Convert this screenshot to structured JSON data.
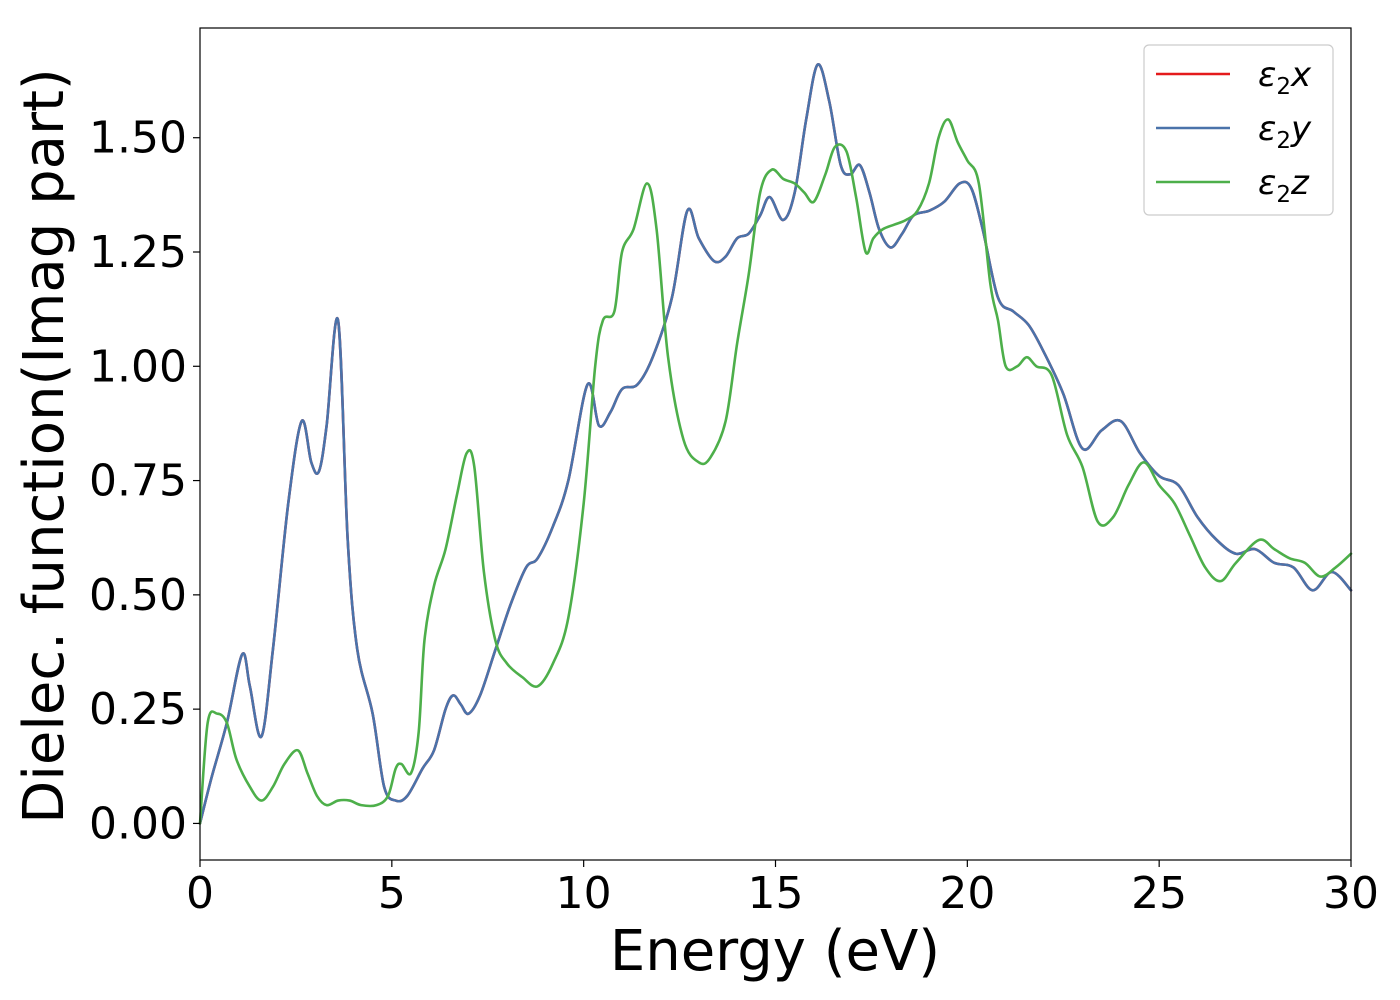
{
  "chart_data": {
    "type": "line",
    "title": "",
    "xlabel": "Energy (eV)",
    "ylabel": "Dielec. function(Imag part)",
    "xlim": [
      0,
      30
    ],
    "ylim": [
      -0.08,
      1.74
    ],
    "xticks": [
      0,
      5,
      10,
      15,
      20,
      25,
      30
    ],
    "xtick_labels": [
      "0",
      "5",
      "10",
      "15",
      "20",
      "25",
      "30"
    ],
    "yticks": [
      0.0,
      0.25,
      0.5,
      0.75,
      1.0,
      1.25,
      1.5
    ],
    "ytick_labels": [
      "0.00",
      "0.25",
      "0.50",
      "0.75",
      "1.00",
      "1.25",
      "1.50"
    ],
    "grid": false,
    "legend_position": "top-right",
    "series": [
      {
        "name": "ε2x",
        "legend_base": "ε",
        "legend_sub": "2",
        "legend_suffix": "x",
        "color": "#e41a1c",
        "x": [
          0,
          0.3,
          0.7,
          1.1,
          1.3,
          1.6,
          1.9,
          2.3,
          2.65,
          2.9,
          3.1,
          3.3,
          3.6,
          3.85,
          4.1,
          4.5,
          4.8,
          5.1,
          5.4,
          5.8,
          6.1,
          6.4,
          6.6,
          6.8,
          7.0,
          7.3,
          7.7,
          8.1,
          8.5,
          8.8,
          9.2,
          9.6,
          10.1,
          10.4,
          10.7,
          11.0,
          11.4,
          11.8,
          12.3,
          12.7,
          13.0,
          13.4,
          13.7,
          14.0,
          14.3,
          14.6,
          14.85,
          15.2,
          15.5,
          15.8,
          16.1,
          16.4,
          16.7,
          16.95,
          17.2,
          17.45,
          17.7,
          18.0,
          18.3,
          18.6,
          19.0,
          19.4,
          19.8,
          20.1,
          20.4,
          20.8,
          21.2,
          21.6,
          22.0,
          22.5,
          23.0,
          23.5,
          24.0,
          24.5,
          25.0,
          25.5,
          26.0,
          26.5,
          27.0,
          27.5,
          28.0,
          28.5,
          29.0,
          29.5,
          30.0
        ],
        "y": [
          0.0,
          0.1,
          0.22,
          0.37,
          0.3,
          0.19,
          0.38,
          0.7,
          0.88,
          0.79,
          0.77,
          0.87,
          1.1,
          0.62,
          0.38,
          0.24,
          0.08,
          0.05,
          0.06,
          0.12,
          0.16,
          0.25,
          0.28,
          0.26,
          0.24,
          0.28,
          0.38,
          0.48,
          0.56,
          0.58,
          0.65,
          0.75,
          0.96,
          0.87,
          0.9,
          0.95,
          0.96,
          1.02,
          1.15,
          1.34,
          1.28,
          1.23,
          1.24,
          1.28,
          1.29,
          1.33,
          1.37,
          1.32,
          1.38,
          1.54,
          1.66,
          1.58,
          1.44,
          1.42,
          1.44,
          1.38,
          1.3,
          1.26,
          1.29,
          1.33,
          1.34,
          1.36,
          1.4,
          1.39,
          1.3,
          1.15,
          1.12,
          1.09,
          1.03,
          0.94,
          0.82,
          0.86,
          0.88,
          0.81,
          0.76,
          0.74,
          0.67,
          0.62,
          0.59,
          0.6,
          0.57,
          0.56,
          0.51,
          0.55,
          0.51
        ]
      },
      {
        "name": "ε2y",
        "legend_base": "ε",
        "legend_sub": "2",
        "legend_suffix": "y",
        "color": "#4a73aa",
        "x": [
          0,
          0.3,
          0.7,
          1.1,
          1.3,
          1.6,
          1.9,
          2.3,
          2.65,
          2.9,
          3.1,
          3.3,
          3.6,
          3.85,
          4.1,
          4.5,
          4.8,
          5.1,
          5.4,
          5.8,
          6.1,
          6.4,
          6.6,
          6.8,
          7.0,
          7.3,
          7.7,
          8.1,
          8.5,
          8.8,
          9.2,
          9.6,
          10.1,
          10.4,
          10.7,
          11.0,
          11.4,
          11.8,
          12.3,
          12.7,
          13.0,
          13.4,
          13.7,
          14.0,
          14.3,
          14.6,
          14.85,
          15.2,
          15.5,
          15.8,
          16.1,
          16.4,
          16.7,
          16.95,
          17.2,
          17.45,
          17.7,
          18.0,
          18.3,
          18.6,
          19.0,
          19.4,
          19.8,
          20.1,
          20.4,
          20.8,
          21.2,
          21.6,
          22.0,
          22.5,
          23.0,
          23.5,
          24.0,
          24.5,
          25.0,
          25.5,
          26.0,
          26.5,
          27.0,
          27.5,
          28.0,
          28.5,
          29.0,
          29.5,
          30.0
        ],
        "y": [
          0.0,
          0.1,
          0.22,
          0.37,
          0.3,
          0.19,
          0.38,
          0.7,
          0.88,
          0.79,
          0.77,
          0.87,
          1.1,
          0.62,
          0.38,
          0.24,
          0.08,
          0.05,
          0.06,
          0.12,
          0.16,
          0.25,
          0.28,
          0.26,
          0.24,
          0.28,
          0.38,
          0.48,
          0.56,
          0.58,
          0.65,
          0.75,
          0.96,
          0.87,
          0.9,
          0.95,
          0.96,
          1.02,
          1.15,
          1.34,
          1.28,
          1.23,
          1.24,
          1.28,
          1.29,
          1.33,
          1.37,
          1.32,
          1.38,
          1.54,
          1.66,
          1.58,
          1.44,
          1.42,
          1.44,
          1.38,
          1.3,
          1.26,
          1.29,
          1.33,
          1.34,
          1.36,
          1.4,
          1.39,
          1.3,
          1.15,
          1.12,
          1.09,
          1.03,
          0.94,
          0.82,
          0.86,
          0.88,
          0.81,
          0.76,
          0.74,
          0.67,
          0.62,
          0.59,
          0.6,
          0.57,
          0.56,
          0.51,
          0.55,
          0.51
        ]
      },
      {
        "name": "ε2z",
        "legend_base": "ε",
        "legend_sub": "2",
        "legend_suffix": "z",
        "color": "#4daf4a",
        "x": [
          0,
          0.2,
          0.45,
          0.7,
          0.95,
          1.3,
          1.6,
          1.9,
          2.2,
          2.55,
          2.8,
          3.05,
          3.3,
          3.6,
          3.9,
          4.2,
          4.6,
          4.9,
          5.1,
          5.25,
          5.5,
          5.7,
          5.85,
          6.1,
          6.4,
          6.7,
          6.95,
          7.15,
          7.4,
          7.7,
          8.0,
          8.4,
          8.8,
          9.2,
          9.6,
          10.0,
          10.3,
          10.5,
          10.8,
          11.0,
          11.3,
          11.65,
          11.9,
          12.2,
          12.6,
          13.0,
          13.3,
          13.7,
          14.0,
          14.3,
          14.6,
          14.9,
          15.2,
          15.5,
          15.75,
          16.0,
          16.3,
          16.55,
          16.85,
          17.1,
          17.35,
          17.55,
          17.8,
          18.1,
          18.4,
          18.7,
          19.0,
          19.25,
          19.5,
          19.75,
          20.0,
          20.3,
          20.6,
          20.8,
          21.0,
          21.3,
          21.55,
          21.8,
          22.2,
          22.6,
          23.0,
          23.4,
          23.8,
          24.2,
          24.6,
          25.0,
          25.4,
          25.8,
          26.2,
          26.6,
          27.0,
          27.6,
          28.0,
          28.4,
          28.8,
          29.2,
          29.6,
          30.0
        ],
        "y": [
          0.0,
          0.22,
          0.24,
          0.22,
          0.14,
          0.08,
          0.05,
          0.08,
          0.13,
          0.16,
          0.11,
          0.06,
          0.04,
          0.05,
          0.05,
          0.04,
          0.04,
          0.06,
          0.12,
          0.13,
          0.11,
          0.2,
          0.4,
          0.52,
          0.6,
          0.72,
          0.81,
          0.78,
          0.55,
          0.4,
          0.35,
          0.32,
          0.3,
          0.35,
          0.45,
          0.7,
          1.0,
          1.1,
          1.12,
          1.25,
          1.3,
          1.4,
          1.3,
          1.02,
          0.84,
          0.79,
          0.8,
          0.88,
          1.05,
          1.2,
          1.38,
          1.43,
          1.41,
          1.4,
          1.38,
          1.36,
          1.42,
          1.48,
          1.47,
          1.37,
          1.25,
          1.28,
          1.3,
          1.31,
          1.32,
          1.34,
          1.4,
          1.5,
          1.54,
          1.49,
          1.45,
          1.4,
          1.18,
          1.1,
          1.0,
          1.0,
          1.02,
          1.0,
          0.98,
          0.85,
          0.78,
          0.66,
          0.67,
          0.74,
          0.79,
          0.74,
          0.7,
          0.63,
          0.56,
          0.53,
          0.57,
          0.62,
          0.6,
          0.58,
          0.57,
          0.54,
          0.56,
          0.59
        ]
      }
    ]
  }
}
